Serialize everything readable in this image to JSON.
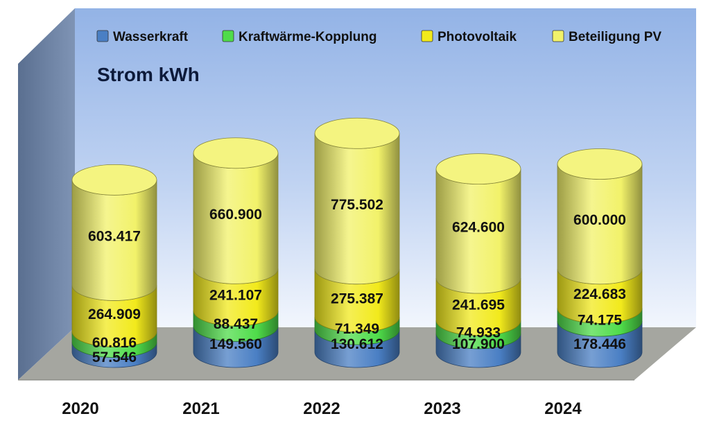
{
  "chart_data": {
    "type": "bar",
    "title": "Strom kWh",
    "categories": [
      "2020",
      "2021",
      "2022",
      "2023",
      "2024"
    ],
    "series": [
      {
        "name": "Wasserkraft",
        "values": [
          57546,
          149560,
          130612,
          107900,
          178446
        ],
        "labels": [
          "57.546",
          "149.560",
          "130.612",
          "107.900",
          "178.446"
        ]
      },
      {
        "name": "Kraftwärme-Kopplung",
        "values": [
          60816,
          88437,
          71349,
          74933,
          74175
        ],
        "labels": [
          "60.816",
          "88.437",
          "71.349",
          "74.933",
          "74.175"
        ]
      },
      {
        "name": "Photovoltaik",
        "values": [
          264909,
          241107,
          275387,
          241695,
          224683
        ],
        "labels": [
          "264.909",
          "241.107",
          "275.387",
          "241.695",
          "224.683"
        ]
      },
      {
        "name": "Beteiligung PV",
        "values": [
          603417,
          660900,
          775502,
          624600,
          600000
        ],
        "labels": [
          "603.417",
          "660.900",
          "775.502",
          "624.600",
          "600.000"
        ]
      }
    ],
    "stacked": true,
    "legend_position": "top",
    "colors": [
      "#4a7fc4",
      "#4fdc4a",
      "#f2ea1c",
      "#f2f26a"
    ]
  }
}
